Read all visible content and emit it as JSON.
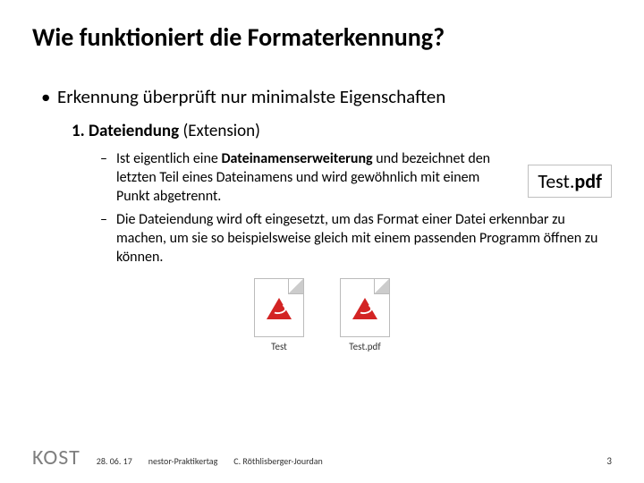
{
  "title": "Wie funktioniert die Formaterkennung?",
  "bullet1": "Erkennung überprüft nur minimalste Eigenschaften",
  "numItem": {
    "number": "1.",
    "label": "Dateiendung",
    "paren": "(Extension)"
  },
  "dash1_a": "Ist eigentlich eine ",
  "dash1_b": "Dateinamenserweiterung",
  "dash1_c": " und bezeichnet den letzten Teil eines Dateinamens und wird gewöhnlich mit einem Punkt abgetrennt.",
  "dash2": "Die Dateiendung wird oft eingesetzt, um das Format einer Datei erkennbar zu machen, um sie so beispielsweise gleich mit einem passenden Programm öffnen zu können.",
  "badge": {
    "name": "Test.",
    "ext": "pdf"
  },
  "files": {
    "left": "Test",
    "right": "Test.pdf"
  },
  "footer": {
    "brand": "KOST",
    "date": "28. 06. 17",
    "event": "nestor-Praktikertag",
    "author": "C. Röthlisberger-Jourdan"
  },
  "pageNumber": "3",
  "colors": {
    "text": "#000000",
    "muted": "#7f7f7f",
    "boxBorder": "#bfbfbf",
    "pdfRed": "#d32424"
  }
}
